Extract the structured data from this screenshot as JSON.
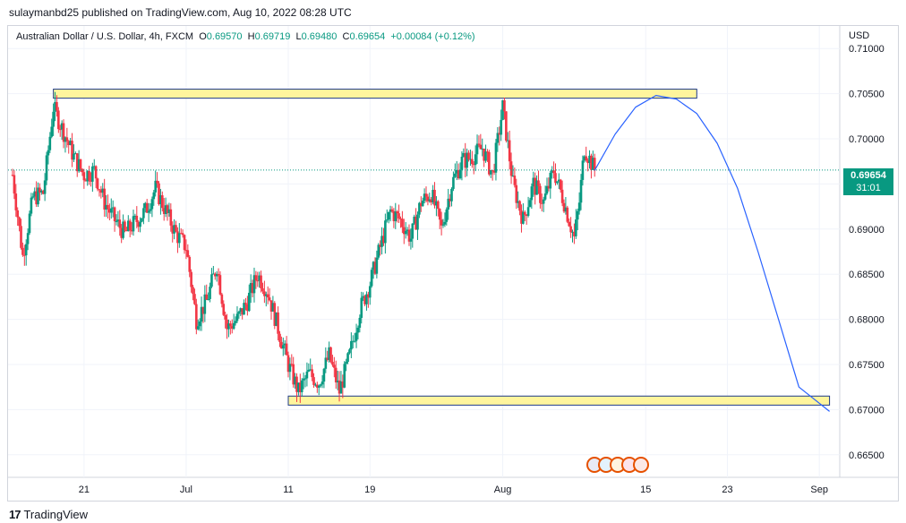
{
  "header": {
    "publisher_line": "sulaymanbd25 published on TradingView.com, Aug 10, 2022 08:28 UTC"
  },
  "legend": {
    "symbol": "Australian Dollar / U.S. Dollar, 4h, FXCM",
    "o_label": "O",
    "o_value": "0.69570",
    "h_label": "H",
    "h_value": "0.69719",
    "l_label": "L",
    "l_value": "0.69480",
    "c_label": "C",
    "c_value": "0.69654",
    "change": "+0.00084 (+0.12%)"
  },
  "price_axis": {
    "unit": "USD",
    "current_price": "0.69654",
    "countdown": "31:01"
  },
  "footer": {
    "logo_glyph": "17",
    "brand": "TradingView"
  },
  "colors": {
    "up": "#089981",
    "down": "#f23645",
    "zone_fill": "#fff59d",
    "zone_stroke": "#1e3a8a",
    "projection": "#2962ff",
    "grid": "#f0f3fa",
    "axis_text": "#131722"
  },
  "chart_data": {
    "type": "candlestick",
    "symbol": "AUDUSD",
    "timeframe": "4h",
    "y_ticks": [
      0.665,
      0.67,
      0.675,
      0.68,
      0.685,
      0.69,
      0.695,
      0.7,
      0.705,
      0.71
    ],
    "ylim": [
      0.6625,
      0.7125
    ],
    "x_tick_labels": [
      "21",
      "Jul",
      "11",
      "19",
      "Aug",
      "15",
      "23",
      "Sep"
    ],
    "x_tick_dates": [
      "2022-06-21",
      "2022-07-01",
      "2022-07-11",
      "2022-07-19",
      "2022-08-01",
      "2022-08-15",
      "2022-08-23",
      "2022-09-01"
    ],
    "xlim": [
      "2022-06-14",
      "2022-09-03"
    ],
    "last_close": 0.69654,
    "price_path": [
      [
        "2022-06-14",
        0.696
      ],
      [
        "2022-06-15",
        0.687
      ],
      [
        "2022-06-16",
        0.6935
      ],
      [
        "2022-06-17",
        0.694
      ],
      [
        "2022-06-18",
        0.7035
      ],
      [
        "2022-06-20",
        0.698
      ],
      [
        "2022-06-21",
        0.696
      ],
      [
        "2022-06-22",
        0.6965
      ],
      [
        "2022-06-23",
        0.693
      ],
      [
        "2022-06-24",
        0.691
      ],
      [
        "2022-06-25",
        0.6895
      ],
      [
        "2022-06-27",
        0.692
      ],
      [
        "2022-06-28",
        0.6945
      ],
      [
        "2022-06-29",
        0.692
      ],
      [
        "2022-06-30",
        0.6895
      ],
      [
        "2022-07-01",
        0.688
      ],
      [
        "2022-07-02",
        0.68
      ],
      [
        "2022-07-03",
        0.682
      ],
      [
        "2022-07-04",
        0.686
      ],
      [
        "2022-07-05",
        0.679
      ],
      [
        "2022-07-06",
        0.68
      ],
      [
        "2022-07-07",
        0.682
      ],
      [
        "2022-07-08",
        0.685
      ],
      [
        "2022-07-09",
        0.683
      ],
      [
        "2022-07-10",
        0.679
      ],
      [
        "2022-07-11",
        0.675
      ],
      [
        "2022-07-12",
        0.672
      ],
      [
        "2022-07-13",
        0.674
      ],
      [
        "2022-07-14",
        0.673
      ],
      [
        "2022-07-15",
        0.676
      ],
      [
        "2022-07-16",
        0.672
      ],
      [
        "2022-07-17",
        0.676
      ],
      [
        "2022-07-18",
        0.681
      ],
      [
        "2022-07-19",
        0.684
      ],
      [
        "2022-07-20",
        0.688
      ],
      [
        "2022-07-21",
        0.692
      ],
      [
        "2022-07-22",
        0.691
      ],
      [
        "2022-07-23",
        0.689
      ],
      [
        "2022-07-24",
        0.693
      ],
      [
        "2022-07-25",
        0.694
      ],
      [
        "2022-07-26",
        0.69
      ],
      [
        "2022-07-27",
        0.695
      ],
      [
        "2022-07-28",
        0.6975
      ],
      [
        "2022-07-29",
        0.698
      ],
      [
        "2022-07-30",
        0.699
      ],
      [
        "2022-07-31",
        0.696
      ],
      [
        "2022-08-01",
        0.7035
      ],
      [
        "2022-08-02",
        0.695
      ],
      [
        "2022-08-03",
        0.691
      ],
      [
        "2022-08-04",
        0.695
      ],
      [
        "2022-08-05",
        0.693
      ],
      [
        "2022-08-06",
        0.6965
      ],
      [
        "2022-08-07",
        0.693
      ],
      [
        "2022-08-08",
        0.689
      ],
      [
        "2022-08-08T12:00",
        0.693
      ],
      [
        "2022-08-09",
        0.699
      ],
      [
        "2022-08-10",
        0.69654
      ]
    ],
    "support_zone": {
      "low": 0.6705,
      "high": 0.6715,
      "from": "2022-07-11",
      "to": "2022-09-02"
    },
    "resistance_zone": {
      "low": 0.7045,
      "high": 0.7055,
      "from": "2022-06-18",
      "to": "2022-08-20"
    },
    "projection_path": [
      [
        "2022-08-10",
        0.6965
      ],
      [
        "2022-08-12",
        0.7005
      ],
      [
        "2022-08-14",
        0.7035
      ],
      [
        "2022-08-16",
        0.7048
      ],
      [
        "2022-08-18",
        0.7044
      ],
      [
        "2022-08-20",
        0.7028
      ],
      [
        "2022-08-22",
        0.6995
      ],
      [
        "2022-08-24",
        0.6945
      ],
      [
        "2022-08-26",
        0.6875
      ],
      [
        "2022-08-28",
        0.68
      ],
      [
        "2022-08-30",
        0.6725
      ],
      [
        "2022-09-02",
        0.6698
      ]
    ],
    "event_icons": [
      "us-flag-icon",
      "eu-flag-icon",
      "au-flag-icon",
      "gb-flag-icon",
      "ca-flag-icon"
    ]
  }
}
